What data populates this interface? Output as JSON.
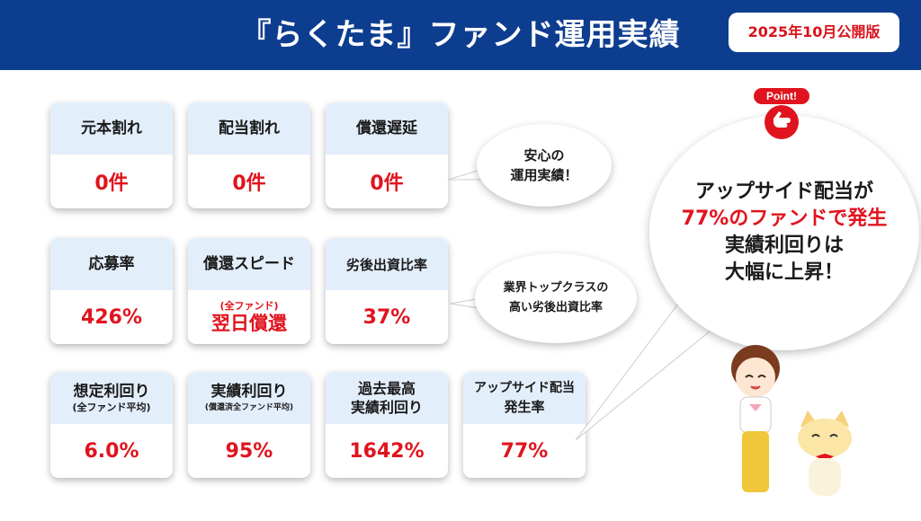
{
  "header": {
    "title": "『らくたま』ファンド運用実績",
    "edition": "2025年10月公開版"
  },
  "cards": {
    "principal_loss": {
      "label": "元本割れ",
      "value": "0件"
    },
    "dividend_loss": {
      "label": "配当割れ",
      "value": "0件"
    },
    "redemption_delay": {
      "label": "償還遅延",
      "value": "0件"
    },
    "application_rate": {
      "label": "応募率",
      "value": "426%"
    },
    "redemption_speed": {
      "label": "償還スピード",
      "note": "(全ファンド)",
      "value": "翌日償還"
    },
    "subordinated_ratio": {
      "label": "劣後出資比率",
      "value": "37%"
    },
    "expected_yield": {
      "label": "想定利回り",
      "sublabel": "(全ファンド平均)",
      "value": "6.0%"
    },
    "actual_yield": {
      "label": "実績利回り",
      "sublabel": "(償還済全ファンド平均)",
      "value": "95%"
    },
    "record_yield": {
      "label_line1": "過去最高",
      "label_line2": "実績利回り",
      "value": "1642%"
    },
    "upside_rate": {
      "label_line1": "アップサイド配当",
      "label_line2": "発生率",
      "value": "77%"
    }
  },
  "bubbles": {
    "safety": {
      "line1": "安心の",
      "line2": "運用実績！"
    },
    "subordinated": {
      "line1": "業界トップクラスの",
      "line2": "高い劣後出資比率"
    },
    "upside": {
      "line1": "アップサイド配当が",
      "line2": "77%のファンドで発生",
      "line3": "実績利回りは",
      "line4": "大幅に上昇！"
    }
  },
  "point_badge": "Point!",
  "colors": {
    "header": "#0d3d8f",
    "accent_red": "#e0141e",
    "card_label_bg": "#e3eefb"
  }
}
